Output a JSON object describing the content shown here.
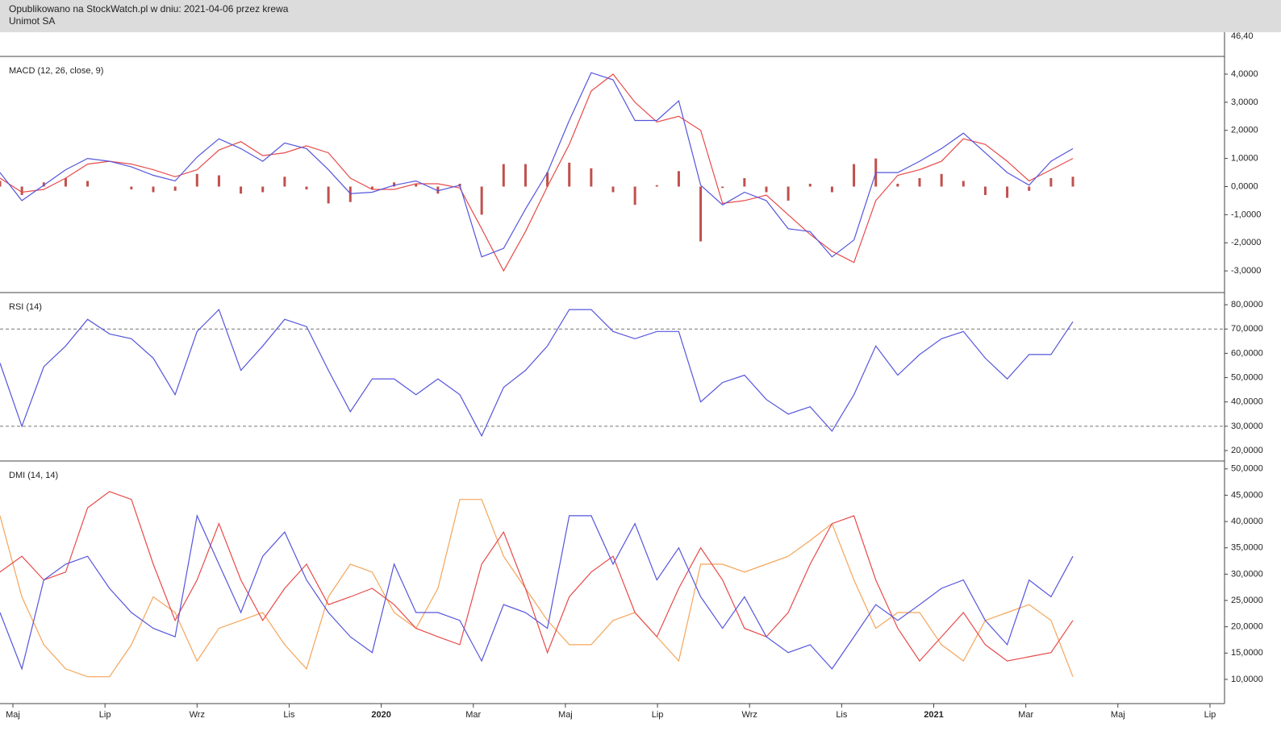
{
  "header": {
    "line1": "Opublikowano na StockWatch.pl w dniu: 2021-04-06 przez krewa",
    "line2": "Unimot SA"
  },
  "price_axis_label": "46,40",
  "x_axis": {
    "ticks": [
      "Maj",
      "Lip",
      "Wrz",
      "Lis",
      "2020",
      "Mar",
      "Maj",
      "Lip",
      "Wrz",
      "Lis",
      "2021",
      "Mar",
      "Maj",
      "Lip"
    ]
  },
  "chart_data": [
    {
      "type": "line",
      "title": "MACD (12, 26, close, 9)",
      "ylim": [
        -3.77,
        4.63
      ],
      "yticks": [
        {
          "value": 4,
          "label": "4,0000"
        },
        {
          "value": 3,
          "label": "3,0000"
        },
        {
          "value": 2,
          "label": "2,0000"
        },
        {
          "value": 1,
          "label": "1,0000"
        },
        {
          "value": 0,
          "label": "0,0000"
        },
        {
          "value": -1,
          "label": "-1,0000"
        },
        {
          "value": -2,
          "label": "-2,0000"
        },
        {
          "value": -3,
          "label": "-3,0000"
        }
      ],
      "series": [
        {
          "color": "#c0504d",
          "style": "histogram",
          "values": [
            0.2,
            -0.3,
            0.15,
            0.3,
            0.2,
            0.0,
            -0.1,
            -0.2,
            -0.15,
            0.45,
            0.4,
            -0.25,
            -0.2,
            0.35,
            -0.1,
            -0.6,
            -0.55,
            -0.1,
            0.15,
            0.1,
            -0.25,
            0.1,
            -1.0,
            0.8,
            0.8,
            0.5,
            0.85,
            0.65,
            -0.2,
            -0.65,
            0.05,
            0.55,
            -1.95,
            -0.05,
            0.3,
            -0.2,
            -0.5,
            0.1,
            -0.2,
            0.8,
            1.0,
            0.1,
            0.3,
            0.45,
            0.2,
            -0.3,
            -0.4,
            -0.15,
            0.3,
            0.35
          ]
        },
        {
          "color": "#e84a4a",
          "values": [
            0.3,
            -0.2,
            -0.1,
            0.3,
            0.8,
            0.9,
            0.8,
            0.6,
            0.35,
            0.6,
            1.3,
            1.6,
            1.1,
            1.2,
            1.45,
            1.2,
            0.3,
            -0.1,
            -0.1,
            0.1,
            0.1,
            -0.05,
            -1.5,
            -3.0,
            -1.6,
            0.0,
            1.5,
            3.4,
            4.0,
            3.0,
            2.3,
            2.5,
            2.0,
            -0.6,
            -0.5,
            -0.3,
            -1.0,
            -1.7,
            -2.3,
            -2.7,
            -0.5,
            0.4,
            0.6,
            0.9,
            1.7,
            1.5,
            0.9,
            0.2,
            0.6,
            1.0
          ]
        },
        {
          "color": "#5555dd",
          "values": [
            0.5,
            -0.5,
            0.05,
            0.6,
            1.0,
            0.9,
            0.7,
            0.4,
            0.2,
            1.05,
            1.7,
            1.35,
            0.9,
            1.55,
            1.35,
            0.6,
            -0.25,
            -0.2,
            0.05,
            0.2,
            -0.15,
            0.05,
            -2.5,
            -2.2,
            -0.8,
            0.5,
            2.35,
            4.05,
            3.8,
            2.35,
            2.35,
            3.05,
            0.05,
            -0.65,
            -0.2,
            -0.5,
            -1.5,
            -1.6,
            -2.5,
            -1.9,
            0.5,
            0.5,
            0.9,
            1.35,
            1.9,
            1.2,
            0.5,
            0.05,
            0.9,
            1.35
          ]
        }
      ]
    },
    {
      "type": "line",
      "title": "RSI (14)",
      "ylim": [
        15.7,
        85
      ],
      "yticks": [
        {
          "value": 80,
          "label": "80,0000"
        },
        {
          "value": 70,
          "label": "70,0000"
        },
        {
          "value": 60,
          "label": "60,0000"
        },
        {
          "value": 50,
          "label": "50,0000"
        },
        {
          "value": 40,
          "label": "40,0000"
        },
        {
          "value": 30,
          "label": "30,0000"
        },
        {
          "value": 20,
          "label": "20,0000"
        }
      ],
      "levels": [
        70,
        30
      ],
      "series": [
        {
          "color": "#5555dd",
          "values": [
            56,
            30,
            54.5,
            63,
            74,
            68,
            66,
            58,
            43,
            69,
            78,
            53,
            63,
            74,
            71,
            53,
            36,
            49.5,
            49.5,
            43,
            49.5,
            43,
            26,
            46,
            53,
            63,
            78,
            78,
            69,
            66,
            69,
            69,
            40,
            48,
            51,
            41,
            35,
            38,
            28,
            43,
            63,
            51,
            59.5,
            66,
            69,
            58,
            49.5,
            59.5,
            59.5,
            73
          ]
        }
      ]
    },
    {
      "type": "line",
      "title": "DMI (14, 14)",
      "ylim": [
        5.4,
        51.5
      ],
      "yticks": [
        {
          "value": 50,
          "label": "50,0000"
        },
        {
          "value": 45,
          "label": "45,0000"
        },
        {
          "value": 40,
          "label": "40,0000"
        },
        {
          "value": 35,
          "label": "35,0000"
        },
        {
          "value": 30,
          "label": "30,0000"
        },
        {
          "value": 25,
          "label": "25,0000"
        },
        {
          "value": 20,
          "label": "20,0000"
        },
        {
          "value": 15,
          "label": "15,0000"
        },
        {
          "value": 10,
          "label": "10,0000"
        }
      ],
      "series": [
        {
          "color": "#f5a55a",
          "values": [
            41.1,
            25.7,
            16.6,
            12,
            10.5,
            10.5,
            16.6,
            25.7,
            22.7,
            13.5,
            19.7,
            21.2,
            22.7,
            16.6,
            12,
            25.7,
            31.9,
            30.4,
            22.7,
            19.7,
            27.3,
            44.2,
            44.2,
            33.4,
            27.3,
            21.2,
            16.6,
            16.6,
            21.2,
            22.7,
            18.1,
            13.5,
            31.9,
            31.9,
            30.4,
            31.9,
            33.4,
            36.4,
            39.6,
            28.9,
            19.7,
            22.7,
            22.7,
            16.6,
            13.5,
            21.2,
            22.7,
            24.2,
            21.2,
            10.5
          ]
        },
        {
          "color": "#e84a4a",
          "values": [
            30.4,
            33.4,
            28.9,
            30.4,
            42.6,
            45.7,
            44.2,
            31.9,
            21.2,
            28.9,
            39.6,
            28.9,
            21.2,
            27.3,
            31.9,
            24.2,
            25.7,
            27.3,
            24.2,
            19.7,
            18.1,
            16.6,
            31.9,
            38,
            27.3,
            15.1,
            25.7,
            30.4,
            33.4,
            22.7,
            18.1,
            27.3,
            35,
            28.9,
            19.7,
            18.1,
            22.7,
            31.9,
            39.6,
            41.1,
            28.9,
            19.7,
            13.5,
            18.1,
            22.7,
            16.6,
            13.5,
            14.3,
            15.1,
            21.2
          ]
        },
        {
          "color": "#5555dd",
          "values": [
            22.7,
            12,
            28.9,
            31.9,
            33.4,
            27.3,
            22.7,
            19.7,
            18.1,
            41.1,
            31.9,
            22.7,
            33.4,
            38,
            28.9,
            22.7,
            18.1,
            15.1,
            31.9,
            22.7,
            22.7,
            21.2,
            13.5,
            24.2,
            22.7,
            19.7,
            41.1,
            41.1,
            31.9,
            39.6,
            28.9,
            35,
            25.7,
            19.7,
            25.7,
            18.1,
            15.1,
            16.6,
            12,
            18.1,
            24.2,
            21.2,
            24.2,
            27.3,
            28.9,
            21.2,
            16.6,
            28.9,
            25.7,
            33.4
          ]
        }
      ]
    }
  ]
}
